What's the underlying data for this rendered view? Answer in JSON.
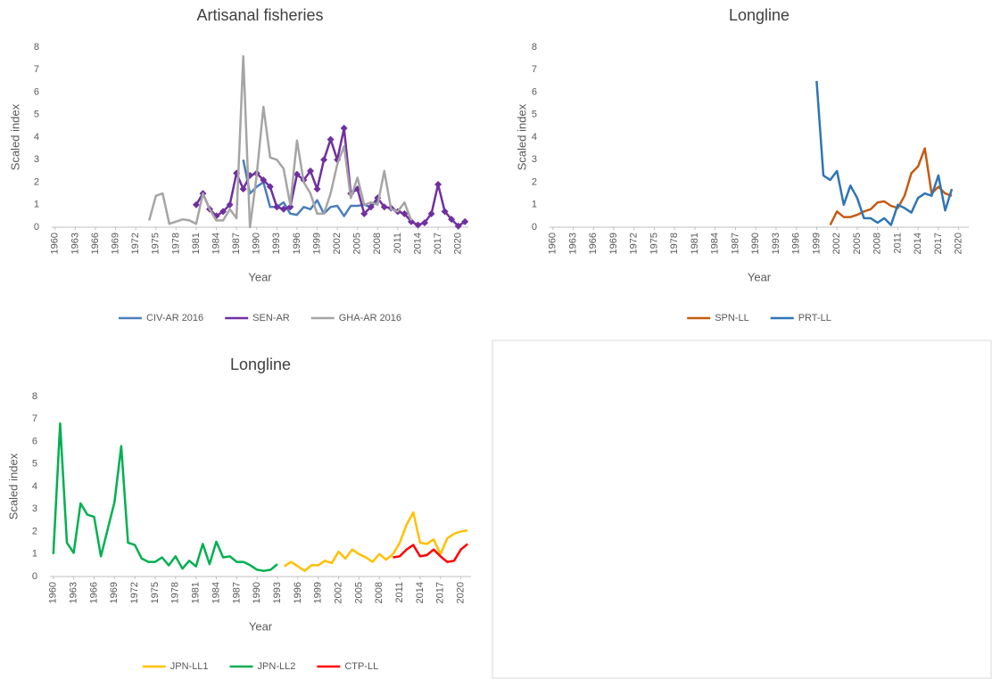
{
  "chart_data": [
    {
      "type": "line",
      "title": "Artisanal fisheries",
      "xlabel": "Year",
      "ylabel": "Scaled index",
      "x": [
        1974,
        1975,
        1976,
        1977,
        1978,
        1979,
        1980,
        1981,
        1982,
        1983,
        1984,
        1985,
        1986,
        1987,
        1988,
        1989,
        1990,
        1991,
        1992,
        1993,
        1994,
        1995,
        1996,
        1997,
        1998,
        1999,
        2000,
        2001,
        2002,
        2003,
        2004,
        2005,
        2006,
        2007,
        2008,
        2009,
        2010,
        2011,
        2012,
        2013,
        2014,
        2015,
        2016,
        2017,
        2018,
        2019,
        2020,
        2021
      ],
      "series": [
        {
          "name": "CIV-AR 2016",
          "color": "#4a7ebb",
          "values": [
            null,
            null,
            null,
            null,
            null,
            null,
            null,
            null,
            null,
            null,
            null,
            null,
            null,
            null,
            3.0,
            1.5,
            1.8,
            2.0,
            0.9,
            0.9,
            1.1,
            0.6,
            0.55,
            0.9,
            0.8,
            1.2,
            0.6,
            0.9,
            0.95,
            0.5,
            0.95,
            0.95,
            1.0,
            0.9,
            1.2,
            null,
            null,
            null,
            null,
            null,
            null,
            null,
            null,
            null,
            null,
            null,
            null,
            null
          ]
        },
        {
          "name": "SEN-AR",
          "color": "#7030a0",
          "marker": "diamond",
          "values": [
            null,
            null,
            null,
            null,
            null,
            null,
            null,
            1.0,
            1.5,
            0.8,
            0.5,
            0.7,
            1.0,
            2.4,
            1.7,
            2.3,
            2.4,
            2.1,
            1.8,
            0.9,
            0.8,
            0.9,
            2.35,
            2.1,
            2.5,
            1.7,
            3.0,
            3.9,
            3.0,
            4.4,
            1.5,
            1.7,
            0.6,
            0.9,
            1.3,
            0.9,
            0.85,
            0.7,
            0.6,
            0.25,
            0.1,
            0.2,
            0.6,
            1.9,
            0.7,
            0.35,
            0.05,
            0.25
          ]
        },
        {
          "name": "GHA-AR 2016",
          "color": "#a5a5a5",
          "values": [
            0.3,
            1.4,
            1.5,
            0.15,
            0.25,
            0.35,
            0.3,
            0.15,
            1.5,
            0.8,
            0.3,
            0.3,
            0.8,
            0.4,
            7.6,
            0,
            2.3,
            5.35,
            3.1,
            3.0,
            2.6,
            1.0,
            3.85,
            2.0,
            1.5,
            0.6,
            0.6,
            1.5,
            2.8,
            3.6,
            1.3,
            2.2,
            1.0,
            1.1,
            1.0,
            2.5,
            0.8,
            0.7,
            1.1,
            0.3,
            null,
            null,
            null,
            null,
            null,
            null,
            null,
            null
          ]
        }
      ],
      "xlim": [
        1959.5,
        2021.5
      ],
      "xticks": [
        1960,
        1963,
        1966,
        1969,
        1972,
        1975,
        1978,
        1981,
        1984,
        1987,
        1990,
        1993,
        1996,
        1999,
        2002,
        2005,
        2008,
        2011,
        2014,
        2017,
        2020
      ],
      "ylim": [
        0,
        8
      ],
      "yticks": [
        0,
        1,
        2,
        3,
        4,
        5,
        6,
        7,
        8
      ],
      "grid": false,
      "legend": "bottom"
    },
    {
      "type": "line",
      "title": "Longline",
      "xlabel": "Year",
      "ylabel": "Scaled index",
      "x": [
        1999,
        2000,
        2001,
        2002,
        2003,
        2004,
        2005,
        2006,
        2007,
        2008,
        2009,
        2010,
        2011,
        2012,
        2013,
        2014,
        2015,
        2016,
        2017,
        2018,
        2019
      ],
      "series": [
        {
          "name": "SPN-LL",
          "color": "#c55a11",
          "values": [
            null,
            null,
            0.1,
            0.7,
            0.45,
            0.45,
            0.55,
            0.7,
            0.8,
            1.1,
            1.15,
            0.95,
            0.85,
            1.4,
            2.4,
            2.7,
            3.5,
            1.5,
            1.8,
            1.5,
            1.4
          ]
        },
        {
          "name": "PRT-LL",
          "color": "#2e75b6",
          "values": [
            6.5,
            2.3,
            2.1,
            2.5,
            1.0,
            1.85,
            1.3,
            0.4,
            0.4,
            0.2,
            0.4,
            0.1,
            1.0,
            0.85,
            0.65,
            1.3,
            1.5,
            1.4,
            2.3,
            0.75,
            1.7
          ]
        }
      ],
      "xlim": [
        1959.5,
        2021.5
      ],
      "xticks": [
        1960,
        1963,
        1966,
        1969,
        1972,
        1975,
        1978,
        1981,
        1984,
        1987,
        1990,
        1993,
        1996,
        1999,
        2002,
        2005,
        2008,
        2011,
        2014,
        2017,
        2020
      ],
      "ylim": [
        0,
        8
      ],
      "yticks": [
        0,
        1,
        2,
        3,
        4,
        5,
        6,
        7,
        8
      ],
      "grid": false,
      "legend": "bottom"
    },
    {
      "type": "line",
      "title": "Longline",
      "xlabel": "Year",
      "ylabel": "Scaled index",
      "x": [
        1960,
        1961,
        1962,
        1963,
        1964,
        1965,
        1966,
        1967,
        1968,
        1969,
        1970,
        1971,
        1972,
        1973,
        1974,
        1975,
        1976,
        1977,
        1978,
        1979,
        1980,
        1981,
        1982,
        1983,
        1984,
        1985,
        1986,
        1987,
        1988,
        1989,
        1990,
        1991,
        1992,
        1993,
        1994,
        1995,
        1996,
        1997,
        1998,
        1999,
        2000,
        2001,
        2002,
        2003,
        2004,
        2005,
        2006,
        2007,
        2008,
        2009,
        2010,
        2011,
        2012,
        2013,
        2014,
        2015,
        2016,
        2017,
        2018,
        2019,
        2020,
        2021
      ],
      "series": [
        {
          "name": "JPN-LL1",
          "color": "#ffc000",
          "values": [
            null,
            null,
            null,
            null,
            null,
            null,
            null,
            null,
            null,
            null,
            null,
            null,
            null,
            null,
            null,
            null,
            null,
            null,
            null,
            null,
            null,
            null,
            null,
            null,
            null,
            null,
            null,
            null,
            null,
            null,
            null,
            null,
            null,
            null,
            0.45,
            0.65,
            0.45,
            0.25,
            0.5,
            0.5,
            0.7,
            0.6,
            1.1,
            0.8,
            1.2,
            1.0,
            0.85,
            0.65,
            1.0,
            0.75,
            1.0,
            1.5,
            2.3,
            2.85,
            1.5,
            1.45,
            1.65,
            1.0,
            1.7,
            1.9,
            2.0,
            2.05
          ]
        },
        {
          "name": "JPN-LL2",
          "color": "#00b050",
          "values": [
            1,
            6.8,
            1.5,
            1.05,
            3.25,
            2.75,
            2.65,
            0.9,
            2.1,
            3.3,
            5.8,
            1.5,
            1.4,
            0.8,
            0.65,
            0.65,
            0.85,
            0.5,
            0.9,
            0.35,
            0.7,
            0.45,
            1.45,
            0.55,
            1.55,
            0.85,
            0.9,
            0.65,
            0.65,
            0.5,
            0.3,
            0.25,
            0.3,
            0.55,
            null,
            null,
            null,
            null,
            null,
            null,
            null,
            null,
            null,
            null,
            null,
            null,
            null,
            null,
            null,
            null,
            null,
            null,
            null,
            null,
            null,
            null,
            null,
            null,
            null,
            null,
            null,
            null
          ]
        },
        {
          "name": "CTP-LL",
          "color": "#ff0000",
          "values": [
            null,
            null,
            null,
            null,
            null,
            null,
            null,
            null,
            null,
            null,
            null,
            null,
            null,
            null,
            null,
            null,
            null,
            null,
            null,
            null,
            null,
            null,
            null,
            null,
            null,
            null,
            null,
            null,
            null,
            null,
            null,
            null,
            null,
            null,
            null,
            null,
            null,
            null,
            null,
            null,
            null,
            null,
            null,
            null,
            null,
            null,
            null,
            null,
            null,
            null,
            0.85,
            0.9,
            1.2,
            1.4,
            0.9,
            0.95,
            1.2,
            0.9,
            0.65,
            0.7,
            1.2,
            1.45
          ]
        }
      ],
      "xlim": [
        1959.5,
        2021.5
      ],
      "xticks": [
        1960,
        1963,
        1966,
        1969,
        1972,
        1975,
        1978,
        1981,
        1984,
        1987,
        1990,
        1993,
        1996,
        1999,
        2002,
        2005,
        2008,
        2011,
        2014,
        2017,
        2020
      ],
      "ylim": [
        0,
        8
      ],
      "yticks": [
        0,
        1,
        2,
        3,
        4,
        5,
        6,
        7,
        8
      ],
      "grid": false,
      "legend": "bottom"
    }
  ]
}
